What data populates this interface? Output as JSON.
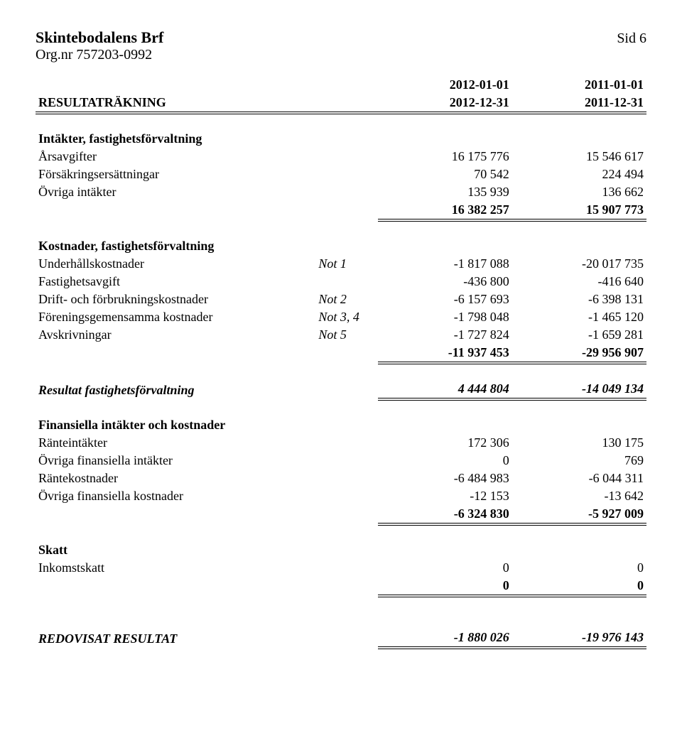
{
  "header": {
    "company": "Skintebodalens Brf",
    "page": "Sid 6",
    "org": "Org.nr 757203-0992"
  },
  "periods": {
    "p1_start": "2012-01-01",
    "p2_start": "2011-01-01",
    "p1_end": "2012-12-31",
    "p2_end": "2011-12-31",
    "report_title": "RESULTATRÄKNING"
  },
  "sec1": {
    "title": "Intäkter, fastighetsförvaltning",
    "r1": {
      "label": "Årsavgifter",
      "v1": "16 175 776",
      "v2": "15 546 617"
    },
    "r2": {
      "label": "Försäkringsersättningar",
      "v1": "70 542",
      "v2": "224 494"
    },
    "r3": {
      "label": "Övriga intäkter",
      "v1": "135 939",
      "v2": "136 662"
    },
    "sum": {
      "v1": "16 382 257",
      "v2": "15 907 773"
    }
  },
  "sec2": {
    "title": "Kostnader, fastighetsförvaltning",
    "r1": {
      "label": "Underhållskostnader",
      "note": "Not 1",
      "v1": "-1 817 088",
      "v2": "-20 017 735"
    },
    "r2": {
      "label": "Fastighetsavgift",
      "v1": "-436 800",
      "v2": "-416 640"
    },
    "r3": {
      "label": "Drift- och förbrukningskostnader",
      "note": "Not 2",
      "v1": "-6 157 693",
      "v2": "-6 398 131"
    },
    "r4": {
      "label": "Föreningsgemensamma kostnader",
      "note": "Not 3, 4",
      "v1": "-1 798 048",
      "v2": "-1 465 120"
    },
    "r5": {
      "label": "Avskrivningar",
      "note": "Not 5",
      "v1": "-1 727 824",
      "v2": "-1 659 281"
    },
    "sum": {
      "v1": "-11 937 453",
      "v2": "-29 956 907"
    }
  },
  "result1": {
    "label": "Resultat fastighetsförvaltning",
    "v1": "4 444 804",
    "v2": "-14 049 134"
  },
  "sec3": {
    "title": "Finansiella intäkter och kostnader",
    "r1": {
      "label": "Ränteintäkter",
      "v1": "172 306",
      "v2": "130 175"
    },
    "r2": {
      "label": "Övriga finansiella intäkter",
      "v1": "0",
      "v2": "769"
    },
    "r3": {
      "label": "Räntekostnader",
      "v1": "-6 484 983",
      "v2": "-6 044 311"
    },
    "r4": {
      "label": "Övriga finansiella kostnader",
      "v1": "-12 153",
      "v2": "-13 642"
    },
    "sum": {
      "v1": "-6 324 830",
      "v2": "-5 927 009"
    }
  },
  "sec4": {
    "title": "Skatt",
    "r1": {
      "label": "Inkomstskatt",
      "v1": "0",
      "v2": "0"
    },
    "sum": {
      "v1": "0",
      "v2": "0"
    }
  },
  "final": {
    "label": "REDOVISAT RESULTAT",
    "v1": "-1 880 026",
    "v2": "-19 976 143"
  }
}
